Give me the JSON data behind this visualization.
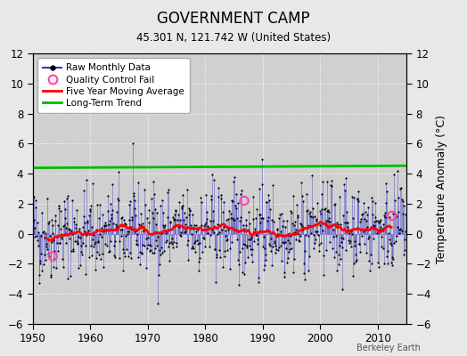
{
  "title": "GOVERNMENT CAMP",
  "subtitle": "45.301 N, 121.742 W (United States)",
  "ylabel": "Temperature Anomaly (°C)",
  "credit": "Berkeley Earth",
  "xlim": [
    1950,
    2015
  ],
  "ylim": [
    -6,
    12
  ],
  "yticks": [
    -6,
    -4,
    -2,
    0,
    2,
    4,
    6,
    8,
    10,
    12
  ],
  "xticks": [
    1950,
    1960,
    1970,
    1980,
    1990,
    2000,
    2010
  ],
  "fig_background": "#e8e8e8",
  "plot_background": "#d0d0d0",
  "raw_line_color": "#3333cc",
  "raw_line_alpha": 0.55,
  "raw_dot_color": "#000000",
  "moving_avg_color": "#ff0000",
  "trend_color": "#00bb00",
  "qc_fail_color": "#ff44aa",
  "seed": 42,
  "n_months": 780,
  "start_year": 1950,
  "noise_std": 1.6,
  "moving_avg_window": 60,
  "qc_fail_points": [
    [
      1953.5,
      -1.5
    ],
    [
      1986.8,
      2.2
    ],
    [
      2012.5,
      1.2
    ]
  ]
}
